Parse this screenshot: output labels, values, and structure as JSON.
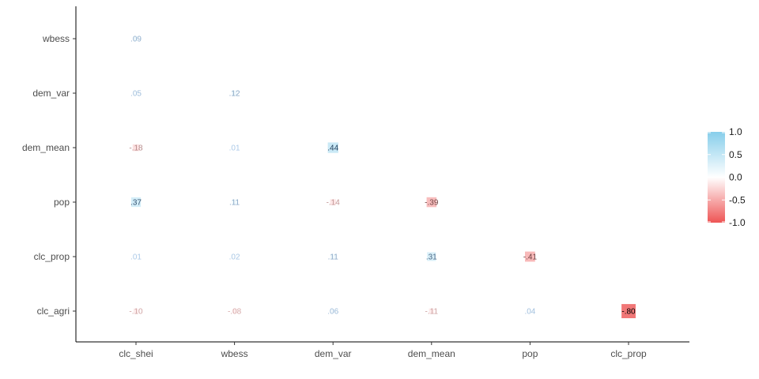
{
  "chart_data": {
    "type": "heatmap",
    "title": "",
    "xlabel": "",
    "ylabel": "",
    "x_categories": [
      "clc_shei",
      "wbess",
      "dem_var",
      "dem_mean",
      "pop",
      "clc_prop"
    ],
    "y_categories": [
      "wbess",
      "dem_var",
      "dem_mean",
      "pop",
      "clc_prop",
      "clc_agri"
    ],
    "cells": [
      {
        "x": "clc_shei",
        "y": "wbess",
        "value": 0.09,
        "label": ".09"
      },
      {
        "x": "clc_shei",
        "y": "dem_var",
        "value": 0.05,
        "label": ".05"
      },
      {
        "x": "wbess",
        "y": "dem_var",
        "value": 0.12,
        "label": ".12"
      },
      {
        "x": "clc_shei",
        "y": "dem_mean",
        "value": -0.18,
        "label": "-.18"
      },
      {
        "x": "wbess",
        "y": "dem_mean",
        "value": 0.01,
        "label": ".01"
      },
      {
        "x": "dem_var",
        "y": "dem_mean",
        "value": 0.44,
        "label": ".44"
      },
      {
        "x": "clc_shei",
        "y": "pop",
        "value": 0.37,
        "label": ".37"
      },
      {
        "x": "wbess",
        "y": "pop",
        "value": 0.11,
        "label": ".11"
      },
      {
        "x": "dem_var",
        "y": "pop",
        "value": -0.14,
        "label": "-.14"
      },
      {
        "x": "dem_mean",
        "y": "pop",
        "value": -0.39,
        "label": "-.39"
      },
      {
        "x": "clc_shei",
        "y": "clc_prop",
        "value": 0.01,
        "label": ".01"
      },
      {
        "x": "wbess",
        "y": "clc_prop",
        "value": 0.02,
        "label": ".02"
      },
      {
        "x": "dem_var",
        "y": "clc_prop",
        "value": 0.11,
        "label": ".11"
      },
      {
        "x": "dem_mean",
        "y": "clc_prop",
        "value": 0.31,
        "label": ".31"
      },
      {
        "x": "pop",
        "y": "clc_prop",
        "value": -0.41,
        "label": "-.41"
      },
      {
        "x": "clc_shei",
        "y": "clc_agri",
        "value": -0.1,
        "label": "-.10"
      },
      {
        "x": "wbess",
        "y": "clc_agri",
        "value": -0.08,
        "label": "-.08"
      },
      {
        "x": "dem_var",
        "y": "clc_agri",
        "value": 0.06,
        "label": ".06"
      },
      {
        "x": "dem_mean",
        "y": "clc_agri",
        "value": -0.11,
        "label": "-.11"
      },
      {
        "x": "pop",
        "y": "clc_agri",
        "value": 0.04,
        "label": ".04"
      },
      {
        "x": "clc_prop",
        "y": "clc_agri",
        "value": -0.8,
        "label": "-.80"
      }
    ],
    "value_range": [
      -1.0,
      1.0
    ],
    "legend": {
      "position": "right",
      "ticks": [
        {
          "value": 1.0,
          "label": "1.0"
        },
        {
          "value": 0.5,
          "label": "0.5"
        },
        {
          "value": 0.0,
          "label": "0.0"
        },
        {
          "value": -0.5,
          "label": "-0.5"
        },
        {
          "value": -1.0,
          "label": "-1.0"
        }
      ],
      "colors": {
        "high": "#87ceeb",
        "mid": "#ffffff",
        "low": "#ee5555"
      }
    },
    "grid": false
  }
}
